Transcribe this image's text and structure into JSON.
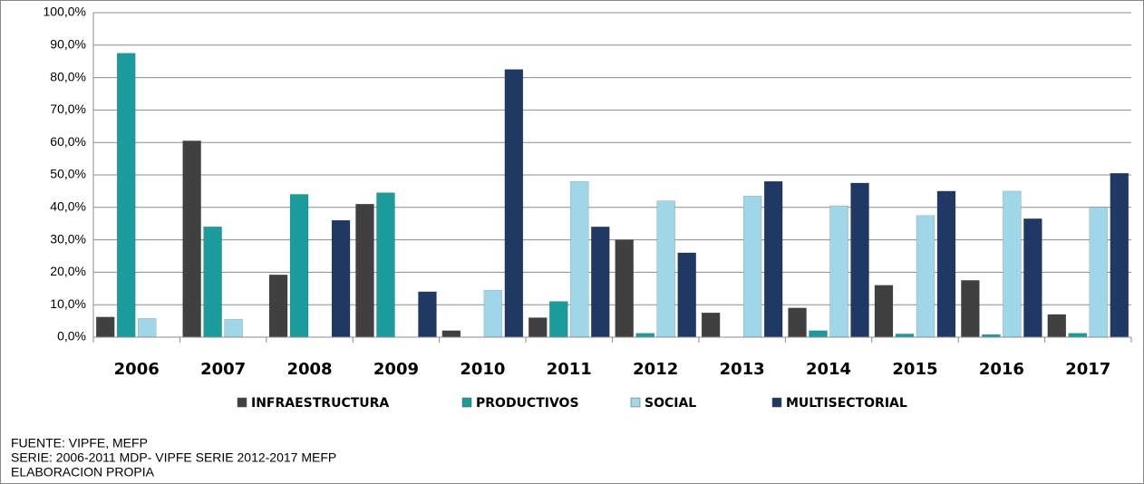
{
  "chart_data": {
    "type": "bar",
    "categories": [
      "2006",
      "2007",
      "2008",
      "2009",
      "2010",
      "2011",
      "2012",
      "2013",
      "2014",
      "2015",
      "2016",
      "2017"
    ],
    "series": [
      {
        "name": "INFRAESTRUCTURA",
        "color": "#404040",
        "values": [
          6.2,
          60.5,
          19.2,
          41,
          2,
          6,
          30,
          7.5,
          9,
          16,
          17.5,
          7
        ]
      },
      {
        "name": "PRODUCTIVOS",
        "color": "#1a9c9c",
        "values": [
          87.5,
          34,
          44,
          44.5,
          0,
          11,
          1.2,
          0,
          2,
          1,
          0.8,
          1.2
        ]
      },
      {
        "name": "SOCIAL",
        "color": "#9fd6e8",
        "values": [
          5.8,
          5.5,
          0,
          0,
          14.5,
          48,
          42,
          43.5,
          40.5,
          37.5,
          45,
          40
        ]
      },
      {
        "name": "MULTISECTORIAL",
        "color": "#1f3864",
        "values": [
          0,
          0,
          36,
          14,
          82.5,
          34,
          26,
          48,
          47.5,
          45,
          36.5,
          50.5
        ]
      }
    ],
    "ylim": [
      0,
      100
    ],
    "yticks": [
      {
        "value": 0,
        "label": "0,0%"
      },
      {
        "value": 10,
        "label": "10,0%"
      },
      {
        "value": 20,
        "label": "20,0%"
      },
      {
        "value": 30,
        "label": "30,0%"
      },
      {
        "value": 40,
        "label": "40,0%"
      },
      {
        "value": 50,
        "label": "50,0%"
      },
      {
        "value": 60,
        "label": "60,0%"
      },
      {
        "value": 70,
        "label": "70,0%"
      },
      {
        "value": 80,
        "label": "80,0%"
      },
      {
        "value": 90,
        "label": "90,0%"
      },
      {
        "value": 100,
        "label": "100,0%"
      }
    ],
    "grid": true,
    "legend": "bottom",
    "notes": [
      "FUENTE: VIPFE, MEFP",
      "SERIE: 2006-2011 MDP- VIPFE  SERIE 2012-2017 MEFP",
      "ELABORACION PROPIA"
    ]
  }
}
